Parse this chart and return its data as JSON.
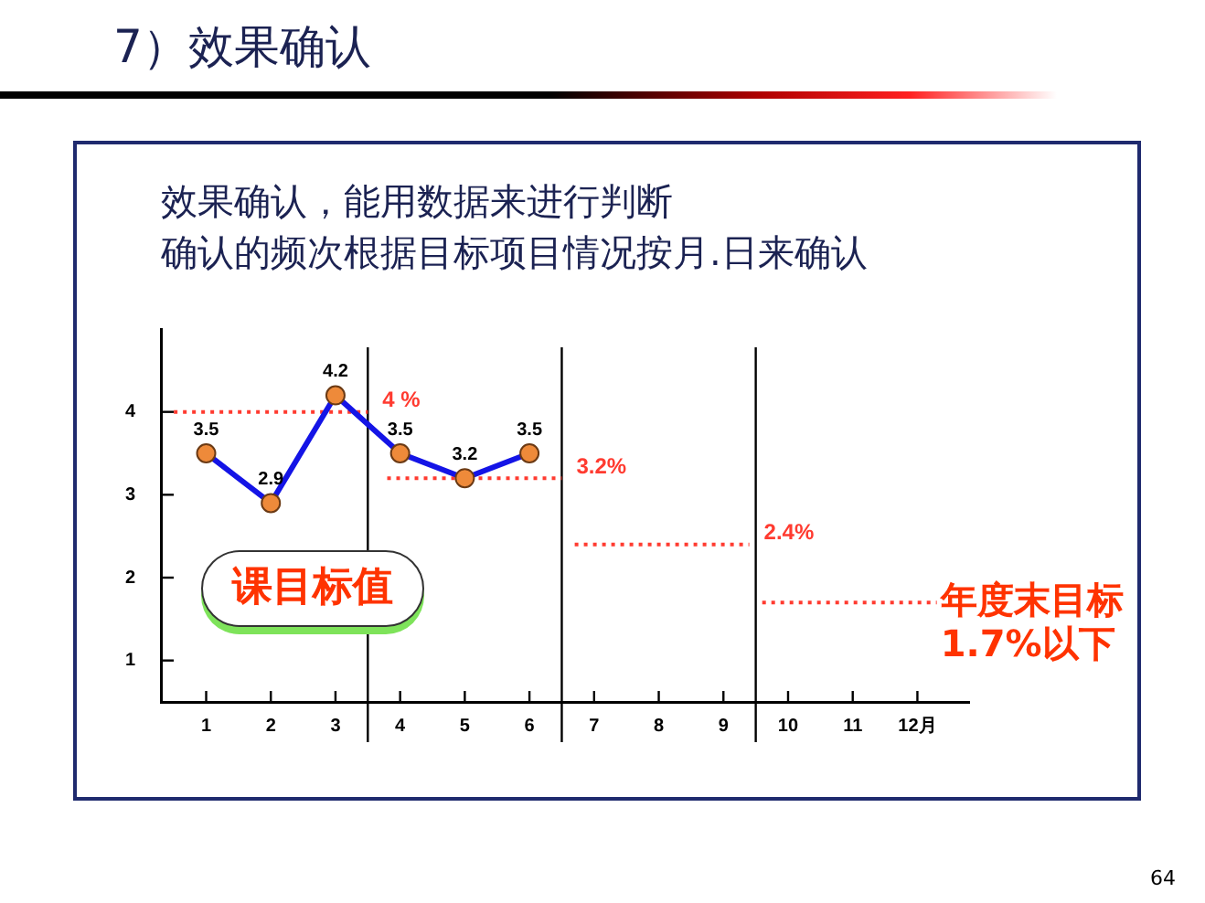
{
  "chart_data": {
    "type": "line",
    "title": "7）效果确认",
    "subtitle": "效果确认，能用数据来进行判断",
    "xlim": [
      0.3,
      12.8
    ],
    "xticks": [
      1,
      2,
      3,
      4,
      5,
      6,
      7,
      8,
      9,
      10,
      11,
      {
        "value": 12,
        "label": "12月"
      }
    ],
    "ylim": [
      0.5,
      5
    ],
    "yticks": [
      1,
      2,
      3,
      4
    ],
    "series": [
      {
        "color": "#1414e6",
        "colors": [
          "#ee8a3a",
          "#ee8a3a",
          "#ee8a3a",
          "#ee8a3a",
          "#ee8a3a",
          "#ee8a3a"
        ],
        "x": [
          1,
          2,
          3,
          4,
          5,
          6
        ],
        "values": [
          3.5,
          2.9,
          4.2,
          3.5,
          3.2,
          3.5
        ],
        "value_labels": [
          "3.5",
          "2.9",
          "4.2",
          "3.5",
          "3.2",
          "3.5"
        ],
        "marker": "circle",
        "line_style": "solid"
      },
      {
        "color": "#ff3b30",
        "x": [
          0.5,
          3.5
        ],
        "values": [
          4,
          4
        ],
        "value_labels": [
          null,
          "4 %"
        ],
        "marker": "none",
        "line_style": "dotted"
      },
      {
        "color": "#ff3b30",
        "x": [
          3.8,
          6.5
        ],
        "values": [
          3.2,
          3.2
        ],
        "value_labels": [
          null,
          "3.2%"
        ],
        "marker": "none",
        "line_style": "dotted"
      },
      {
        "color": "#ff3b30",
        "x": [
          6.7,
          9.4
        ],
        "values": [
          2.4,
          2.4
        ],
        "value_labels": [
          null,
          "2.4%"
        ],
        "marker": "none",
        "line_style": "dotted"
      },
      {
        "color": "#ff3b30",
        "x": [
          9.6,
          12.3
        ],
        "values": [
          1.7,
          1.7
        ],
        "marker": "none",
        "line_style": "dotted"
      }
    ],
    "ref_lines": [
      {
        "axis": "x",
        "value": 3.5,
        "color": "#000000"
      },
      {
        "axis": "x",
        "value": 6.5,
        "color": "#000000"
      },
      {
        "axis": "x",
        "value": 9.5,
        "color": "#000000"
      }
    ],
    "annotations": [
      "确认的频次根据目标项目情况按月.日来确认",
      "课目标值",
      {
        "text": "年度末目标\n1.7%以下",
        "x": 12.3,
        "y": 1.7
      },
      "64"
    ]
  }
}
